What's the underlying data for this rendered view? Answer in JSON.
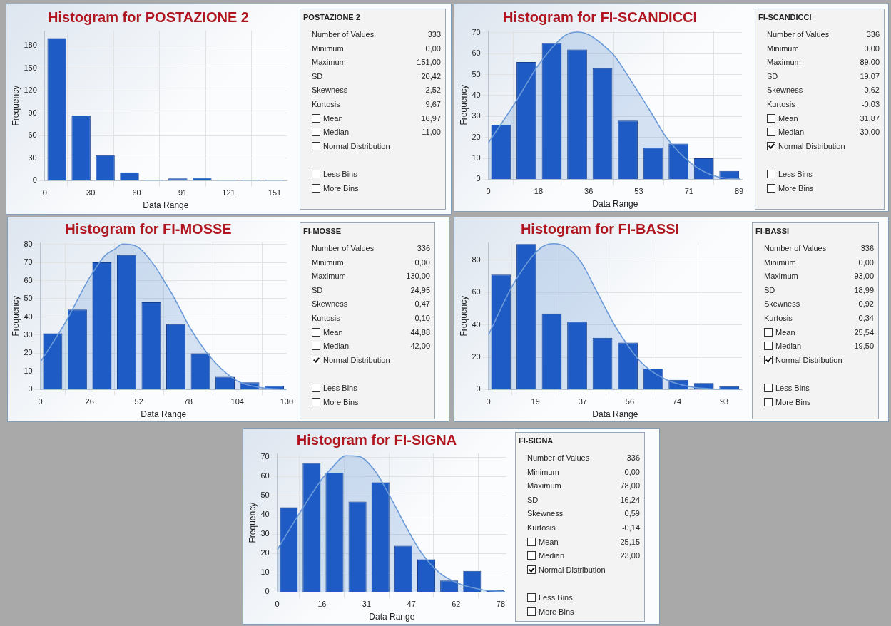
{
  "chart_data": [
    {
      "type": "histogram",
      "title": "Histogram for POSTAZIONE 2",
      "xlabel": "Data Range",
      "ylabel": "Frequency",
      "bins": [
        0,
        15.9,
        31.8,
        47.7,
        63.6,
        79.5,
        95.4,
        111.3,
        127.2,
        143.1,
        159
      ],
      "xlim": [
        0,
        159
      ],
      "ylim": [
        0,
        200
      ],
      "xticks": [
        0,
        {
          "value": 30.2,
          "label": "30"
        },
        {
          "value": 60.4,
          "label": "60"
        },
        {
          "value": 90.6,
          "label": "91"
        },
        {
          "value": 120.8,
          "label": "121"
        },
        151
      ],
      "yticks": [
        0,
        30,
        60,
        90,
        120,
        150,
        180
      ],
      "grid": true,
      "series": [
        {
          "type": "histogram",
          "color": "#1f5bc4",
          "values": [
            190,
            87,
            34,
            11,
            1,
            3,
            4,
            1,
            1,
            1
          ]
        }
      ]
    },
    {
      "type": "other",
      "title": "POSTAZIONE 2",
      "annotations": [
        "Number of Values",
        "333",
        "Minimum",
        "0,00",
        "Maximum",
        "151,00",
        "SD",
        "20,42",
        "Skewness",
        "2,52",
        "Kurtosis",
        "9,67",
        "Mean",
        "16,97",
        "Median",
        "11,00",
        "Normal Distribution",
        "Less Bins",
        "More Bins"
      ]
    },
    {
      "type": "histogram",
      "title": "Histogram for FI-SCANDICCI",
      "xlabel": "Data Range",
      "ylabel": "Frequency",
      "bins": [
        0,
        9,
        18,
        27,
        36,
        45,
        54,
        63,
        72,
        81,
        90
      ],
      "xlim": [
        0,
        90
      ],
      "ylim": [
        0,
        71
      ],
      "xticks": [
        0,
        {
          "value": 17.8,
          "label": "18"
        },
        {
          "value": 35.6,
          "label": "36"
        },
        {
          "value": 53.4,
          "label": "53"
        },
        {
          "value": 71.2,
          "label": "71"
        },
        89
      ],
      "yticks": [
        0,
        10,
        20,
        30,
        40,
        50,
        60,
        70
      ],
      "grid": true,
      "series": [
        {
          "type": "histogram",
          "color": "#1f5bc4",
          "values": [
            26,
            56,
            65,
            62,
            53,
            28,
            15,
            17,
            10,
            4
          ]
        },
        {
          "type": "area",
          "color": "#6b9ad8",
          "x": [
            0,
            9,
            18,
            27,
            31.6,
            36,
            43.7,
            45,
            50.9,
            58,
            63,
            72,
            81,
            89.4
          ],
          "values": [
            17.4,
            35.5,
            55,
            68.5,
            70.3,
            68.8,
            60.5,
            58.6,
            46.5,
            31.4,
            20.3,
            7.6,
            1.3,
            0.2
          ]
        }
      ]
    },
    {
      "type": "other",
      "title": "FI-SCANDICCI",
      "annotations": [
        "Number of Values",
        "336",
        "Minimum",
        "0,00",
        "Maximum",
        "89,00",
        "SD",
        "19,07",
        "Skewness",
        "0,62",
        "Kurtosis",
        "-0,03",
        "Mean",
        "31,87",
        "Median",
        "30,00",
        "Normal Distribution",
        "Less Bins",
        "More Bins"
      ]
    },
    {
      "type": "histogram",
      "title": "Histogram for FI-MOSSE",
      "xlabel": "Data Range",
      "ylabel": "Frequency",
      "bins": [
        0,
        13,
        26,
        39,
        52,
        65,
        78,
        91,
        104,
        117,
        130
      ],
      "xlim": [
        0,
        130
      ],
      "ylim": [
        0,
        81
      ],
      "xticks": [
        0,
        26,
        52,
        78,
        104,
        130
      ],
      "yticks": [
        0,
        10,
        20,
        30,
        40,
        50,
        60,
        70,
        80
      ],
      "grid": true,
      "series": [
        {
          "type": "histogram",
          "color": "#1f5bc4",
          "values": [
            31,
            44,
            70,
            74,
            48,
            36,
            20,
            7,
            4,
            2
          ]
        },
        {
          "type": "area",
          "color": "#6b9ad8",
          "x": [
            0,
            13,
            26,
            34.2,
            39,
            43.5,
            51.5,
            60.8,
            65,
            70,
            79.3,
            91,
            104,
            117,
            129.7
          ],
          "values": [
            15.2,
            36.6,
            61.6,
            73.9,
            77.1,
            80.1,
            78.4,
            67.4,
            60.2,
            51.7,
            33.5,
            16.3,
            4.7,
            1,
            0.1
          ]
        }
      ]
    },
    {
      "type": "other",
      "title": "FI-MOSSE",
      "annotations": [
        "Number of Values",
        "336",
        "Minimum",
        "0,00",
        "Maximum",
        "130,00",
        "SD",
        "24,95",
        "Skewness",
        "0,47",
        "Kurtosis",
        "0,10",
        "Mean",
        "44,88",
        "Median",
        "42,00",
        "Normal Distribution",
        "Less Bins",
        "More Bins"
      ]
    },
    {
      "type": "histogram",
      "title": "Histogram for FI-BASSI",
      "xlabel": "Data Range",
      "ylabel": "Frequency",
      "bins": [
        0,
        10,
        20,
        30,
        40,
        50,
        60,
        70,
        80,
        90,
        100
      ],
      "xlim": [
        0,
        100
      ],
      "ylim": [
        0,
        91
      ],
      "xticks": [
        0,
        {
          "value": 18.6,
          "label": "19"
        },
        {
          "value": 37.2,
          "label": "37"
        },
        {
          "value": 55.8,
          "label": "56"
        },
        {
          "value": 74.4,
          "label": "74"
        },
        93
      ],
      "yticks": [
        0,
        20,
        40,
        60,
        80
      ],
      "grid": true,
      "series": [
        {
          "type": "histogram",
          "color": "#1f5bc4",
          "values": [
            71,
            90,
            47,
            42,
            32,
            29,
            13,
            6,
            4,
            2
          ]
        },
        {
          "type": "area",
          "color": "#6b9ad8",
          "x": [
            0,
            10,
            20,
            25.7,
            30.7,
            36.7,
            42.7,
            48.7,
            50,
            60,
            70,
            80,
            90,
            99.5
          ],
          "values": [
            33.8,
            65.6,
            86.8,
            90.2,
            88.2,
            78.5,
            60.7,
            42.8,
            39.2,
            17.2,
            6.2,
            1.7,
            0.3,
            0
          ]
        }
      ]
    },
    {
      "type": "other",
      "title": "FI-BASSI",
      "annotations": [
        "Number of Values",
        "336",
        "Minimum",
        "0,00",
        "Maximum",
        "93,00",
        "SD",
        "18,99",
        "Skewness",
        "0,92",
        "Kurtosis",
        "0,34",
        "Mean",
        "25,54",
        "Median",
        "19,50",
        "Normal Distribution",
        "Less Bins",
        "More Bins"
      ]
    },
    {
      "type": "histogram",
      "title": "Histogram for FI-SIGNA",
      "xlabel": "Data Range",
      "ylabel": "Frequency",
      "bins": [
        0,
        8,
        16,
        24,
        32,
        40,
        48,
        56,
        64,
        72,
        80
      ],
      "xlim": [
        0,
        80
      ],
      "ylim": [
        0,
        72
      ],
      "xticks": [
        0,
        {
          "value": 15.6,
          "label": "16"
        },
        {
          "value": 31.2,
          "label": "31"
        },
        {
          "value": 46.8,
          "label": "47"
        },
        {
          "value": 62.4,
          "label": "62"
        },
        78
      ],
      "yticks": [
        0,
        10,
        20,
        30,
        40,
        50,
        60,
        70
      ],
      "grid": true,
      "series": [
        {
          "type": "histogram",
          "color": "#1f5bc4",
          "values": [
            44,
            67,
            62,
            47,
            57,
            24,
            17,
            6,
            11,
            1
          ]
        },
        {
          "type": "area",
          "color": "#6b9ad8",
          "x": [
            0,
            8,
            16,
            18.8,
            24,
            28.7,
            34.1,
            39.5,
            44.8,
            50.2,
            56.5,
            64,
            72,
            79.5
          ],
          "values": [
            22,
            41.5,
            59.5,
            64.1,
            70.8,
            70.3,
            62.9,
            49.3,
            34.4,
            20.7,
            10.2,
            4,
            1.1,
            0.2
          ]
        }
      ]
    },
    {
      "type": "other",
      "title": "FI-SIGNA",
      "annotations": [
        "Number of Values",
        "336",
        "Minimum",
        "0,00",
        "Maximum",
        "78,00",
        "SD",
        "16,24",
        "Skewness",
        "0,59",
        "Kurtosis",
        "-0,14",
        "Mean",
        "25,15",
        "Median",
        "23,00",
        "Normal Distribution",
        "Less Bins",
        "More Bins"
      ]
    }
  ]
}
